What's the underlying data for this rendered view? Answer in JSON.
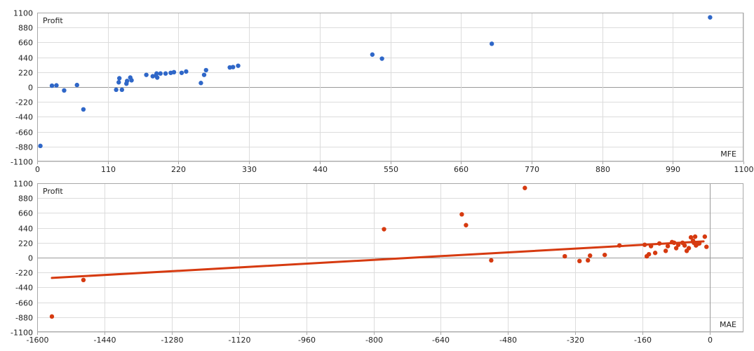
{
  "chart_data": [
    {
      "type": "scatter",
      "name": "mfe",
      "ylabel": "Profit",
      "xlabel": "MFE",
      "xlim": [
        0,
        1100
      ],
      "ylim": [
        -1100,
        1100
      ],
      "xticks": [
        0,
        110,
        220,
        330,
        440,
        550,
        660,
        770,
        880,
        990,
        1100
      ],
      "yticks": [
        1100,
        880,
        660,
        440,
        220,
        0,
        -220,
        -440,
        -660,
        -880,
        -1100
      ],
      "grid": true,
      "color": "#2f67c8",
      "points": [
        [
          5,
          -870
        ],
        [
          23,
          20
        ],
        [
          30,
          25
        ],
        [
          42,
          -50
        ],
        [
          62,
          30
        ],
        [
          72,
          -330
        ],
        [
          123,
          -40
        ],
        [
          127,
          70
        ],
        [
          128,
          130
        ],
        [
          132,
          -40
        ],
        [
          139,
          50
        ],
        [
          140,
          90
        ],
        [
          145,
          140
        ],
        [
          147,
          100
        ],
        [
          170,
          180
        ],
        [
          180,
          160
        ],
        [
          185,
          170
        ],
        [
          186,
          200
        ],
        [
          187,
          140
        ],
        [
          192,
          200
        ],
        [
          200,
          200
        ],
        [
          208,
          210
        ],
        [
          213,
          220
        ],
        [
          225,
          210
        ],
        [
          232,
          230
        ],
        [
          255,
          60
        ],
        [
          260,
          180
        ],
        [
          263,
          250
        ],
        [
          300,
          290
        ],
        [
          305,
          295
        ],
        [
          313,
          315
        ],
        [
          522,
          480
        ],
        [
          537,
          420
        ],
        [
          708,
          640
        ],
        [
          1048,
          1030
        ]
      ]
    },
    {
      "type": "scatter",
      "name": "mae",
      "ylabel": "Profit",
      "xlabel": "MAE",
      "xlim": [
        -1600,
        80
      ],
      "ylim": [
        -1100,
        1100
      ],
      "xticks": [
        -1600,
        -1440,
        -1280,
        -1120,
        -960,
        -800,
        -640,
        -480,
        -320,
        -160,
        0
      ],
      "yticks": [
        1100,
        880,
        660,
        440,
        220,
        0,
        -220,
        -440,
        -660,
        -880,
        -1100
      ],
      "grid": true,
      "color": "#d63a10",
      "trendline": [
        [
          -1565,
          -300
        ],
        [
          -15,
          240
        ]
      ],
      "points": [
        [
          -1565,
          -870
        ],
        [
          -1490,
          -330
        ],
        [
          -775,
          420
        ],
        [
          -590,
          640
        ],
        [
          -580,
          480
        ],
        [
          -520,
          -40
        ],
        [
          -440,
          1030
        ],
        [
          -345,
          20
        ],
        [
          -310,
          -50
        ],
        [
          -290,
          -40
        ],
        [
          -285,
          30
        ],
        [
          -250,
          40
        ],
        [
          -215,
          180
        ],
        [
          -155,
          190
        ],
        [
          -150,
          20
        ],
        [
          -145,
          50
        ],
        [
          -140,
          170
        ],
        [
          -130,
          70
        ],
        [
          -120,
          210
        ],
        [
          -105,
          100
        ],
        [
          -100,
          170
        ],
        [
          -90,
          230
        ],
        [
          -85,
          220
        ],
        [
          -80,
          140
        ],
        [
          -75,
          190
        ],
        [
          -65,
          220
        ],
        [
          -60,
          180
        ],
        [
          -55,
          100
        ],
        [
          -50,
          140
        ],
        [
          -45,
          300
        ],
        [
          -40,
          250
        ],
        [
          -38,
          220
        ],
        [
          -35,
          310
        ],
        [
          -33,
          180
        ],
        [
          -30,
          200
        ],
        [
          -25,
          210
        ],
        [
          -12,
          310
        ],
        [
          -8,
          160
        ]
      ]
    }
  ]
}
